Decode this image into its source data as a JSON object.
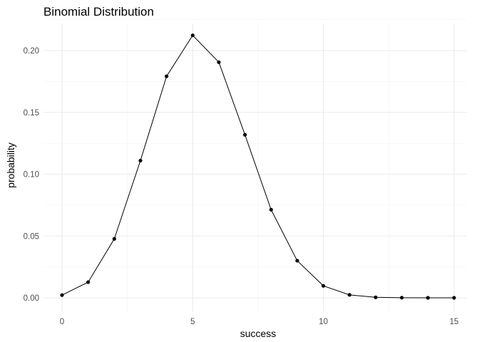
{
  "chart_data": {
    "type": "line",
    "title": "Binomial Distribution",
    "xlabel": "success",
    "ylabel": "probability",
    "xlim": [
      0,
      15
    ],
    "ylim": [
      0,
      0.2125
    ],
    "x_ticks": [
      0,
      5,
      10,
      15
    ],
    "x_tick_labels": [
      "0",
      "5",
      "10",
      "15"
    ],
    "y_ticks": [
      0,
      0.05,
      0.1,
      0.15,
      0.2
    ],
    "y_tick_labels": [
      "0.00",
      "0.05",
      "0.10",
      "0.15",
      "0.20"
    ],
    "grid": true,
    "legend": "none",
    "series": [
      {
        "x": [
          0,
          1,
          2,
          3,
          4,
          5,
          6,
          7,
          8,
          9,
          10,
          11,
          12,
          13,
          14,
          15
        ],
        "values": [
          0.0022,
          0.0127,
          0.0477,
          0.111,
          0.1792,
          0.2123,
          0.1906,
          0.1319,
          0.0713,
          0.03,
          0.0097,
          0.0024,
          0.0004,
          0.0001,
          0.0,
          0.0
        ]
      }
    ],
    "colors": {
      "line": "#000000",
      "points": "#000000",
      "grid": "#ebebeb"
    }
  }
}
